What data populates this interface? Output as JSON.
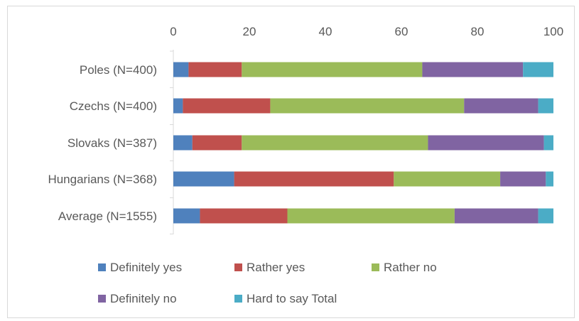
{
  "chart_data": {
    "type": "bar",
    "orientation": "horizontal",
    "stacked": true,
    "categories": [
      "Poles (N=400)",
      "Czechs (N=400)",
      "Slovaks (N=387)",
      "Hungarians (N=368)",
      "Average (N=1555)"
    ],
    "xlim": [
      0,
      100
    ],
    "x_ticks": [
      "0",
      "20",
      "40",
      "60",
      "80",
      "100"
    ],
    "x_axis_position": "top",
    "grid": false,
    "legend_position": "bottom",
    "series": [
      {
        "name": "Definitely yes",
        "color": "#4f81bd",
        "values": [
          4.0,
          2.5,
          5.0,
          16.0,
          7.0
        ]
      },
      {
        "name": "Rather yes",
        "color": "#c0504d",
        "values": [
          14.0,
          23.0,
          13.0,
          42.0,
          23.0
        ]
      },
      {
        "name": "Rather no",
        "color": "#9bbb59",
        "values": [
          47.5,
          51.0,
          49.0,
          28.0,
          44.0
        ]
      },
      {
        "name": "Definitely no",
        "color": "#8064a2",
        "values": [
          26.5,
          19.5,
          30.5,
          12.0,
          22.0
        ]
      },
      {
        "name": "Hard to say Total",
        "color": "#4bacc6",
        "values": [
          8.0,
          4.0,
          2.5,
          2.0,
          4.0
        ]
      }
    ]
  }
}
